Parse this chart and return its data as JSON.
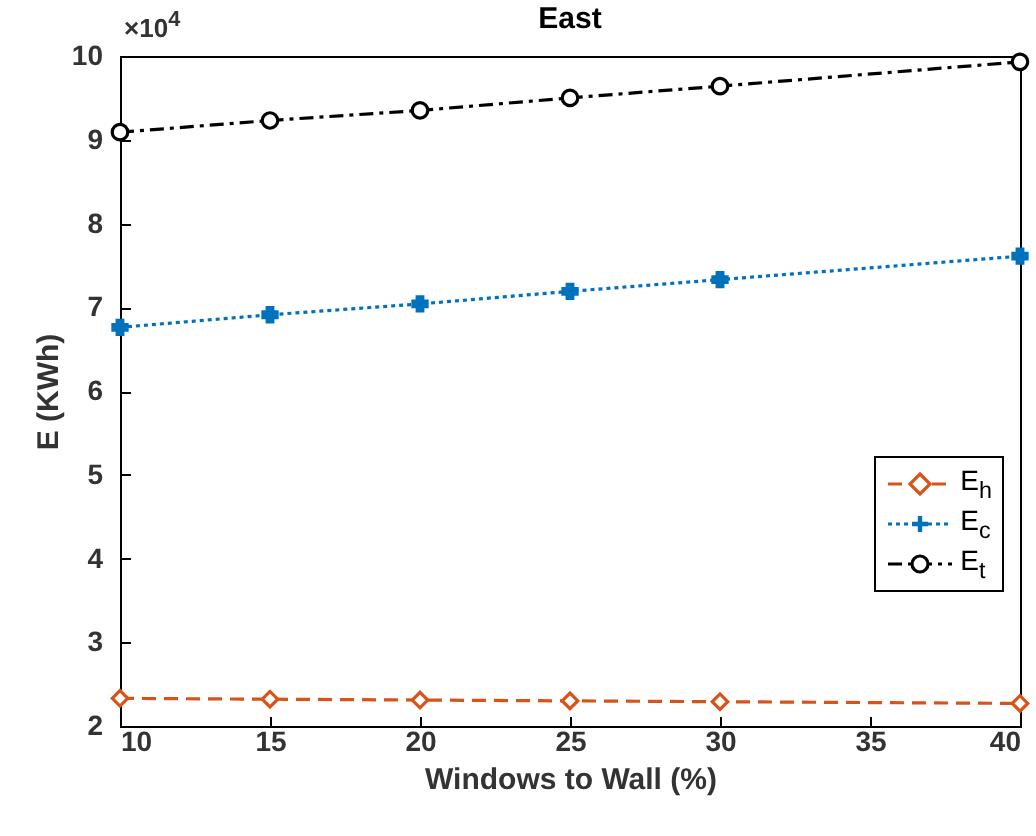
{
  "chart_data": {
    "type": "line",
    "title": "East",
    "xlabel": "Windows to Wall (%)",
    "ylabel": "E (KWh)",
    "annotations": [
      "×10$^{4}$"
    ],
    "x": [
      10,
      15,
      20,
      25,
      30,
      40
    ],
    "series": [
      {
        "name": "E$_{h}$",
        "color": "#d95319",
        "values": [
          2.33,
          2.32,
          2.31,
          2.3,
          2.29,
          2.27
        ],
        "marker": "diamond",
        "line_style": "dashed"
      },
      {
        "name": "E$_{c}$",
        "color": "#0072bd",
        "values": [
          6.76,
          6.91,
          7.04,
          7.19,
          7.33,
          7.61
        ],
        "marker": "cross",
        "line_style": "dotted"
      },
      {
        "name": "E$_{t}$",
        "color": "#000000",
        "values": [
          9.09,
          9.23,
          9.35,
          9.5,
          9.64,
          9.93
        ],
        "marker": "circle",
        "line_style": "dashdot"
      }
    ],
    "xlim": [
      10,
      40
    ],
    "xticks": [
      10,
      15,
      20,
      25,
      30,
      35,
      40
    ],
    "ylim": [
      2,
      10
    ],
    "yticks": [
      2,
      3,
      4,
      5,
      6,
      7,
      8,
      9,
      10
    ],
    "grid": false,
    "legend": "bottom right"
  }
}
